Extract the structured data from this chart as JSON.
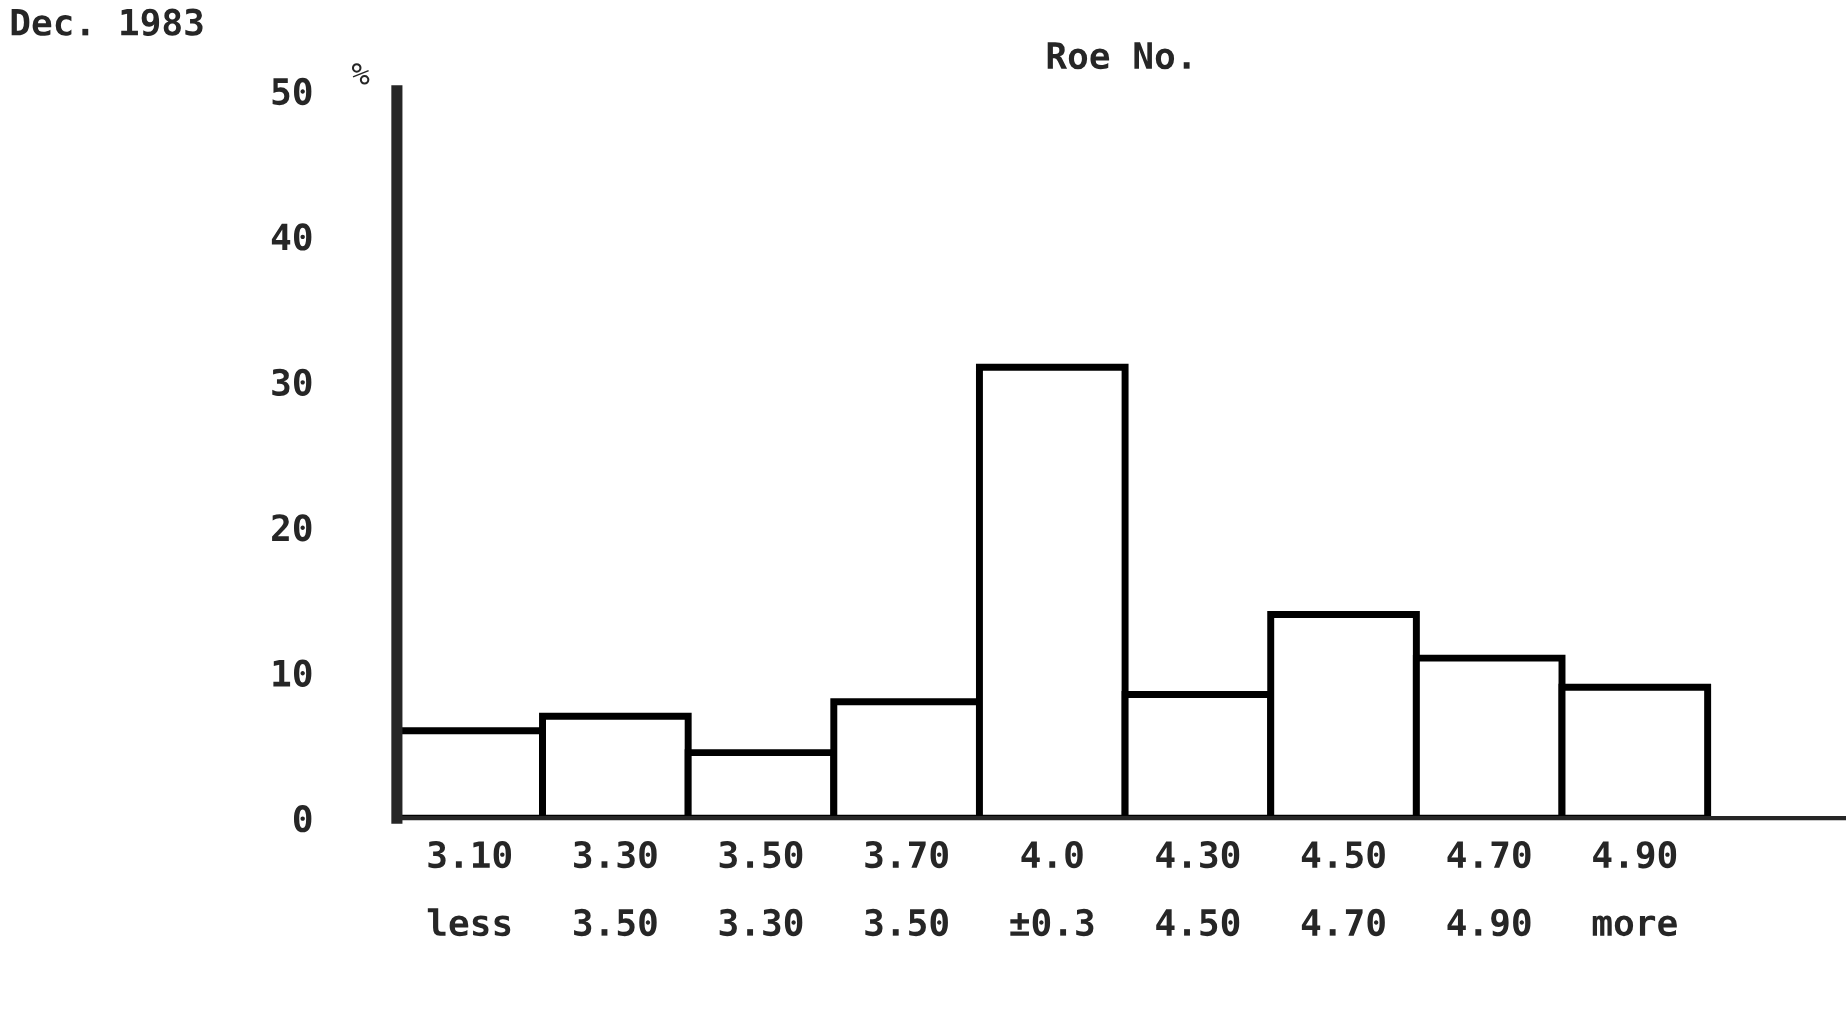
{
  "chart_data": {
    "type": "bar",
    "title": "Roe No.",
    "ylabel": "%",
    "annotations": [
      "Dec. 1983"
    ],
    "categories": [
      "3.10\nless",
      "3.30\n3.50",
      "3.50\n3.30",
      "3.70\n3.50",
      "4.0\n±0.3",
      "4.30\n4.50",
      "4.50\n4.70",
      "4.70\n4.90",
      "4.90\nmore"
    ],
    "values": [
      6,
      7,
      4.5,
      8,
      31,
      8.5,
      14,
      11,
      9
    ],
    "color": "#ffffff",
    "ylim": [
      0,
      50
    ],
    "yticks": [
      0,
      10,
      20,
      30,
      40,
      50
    ],
    "grid": false
  }
}
